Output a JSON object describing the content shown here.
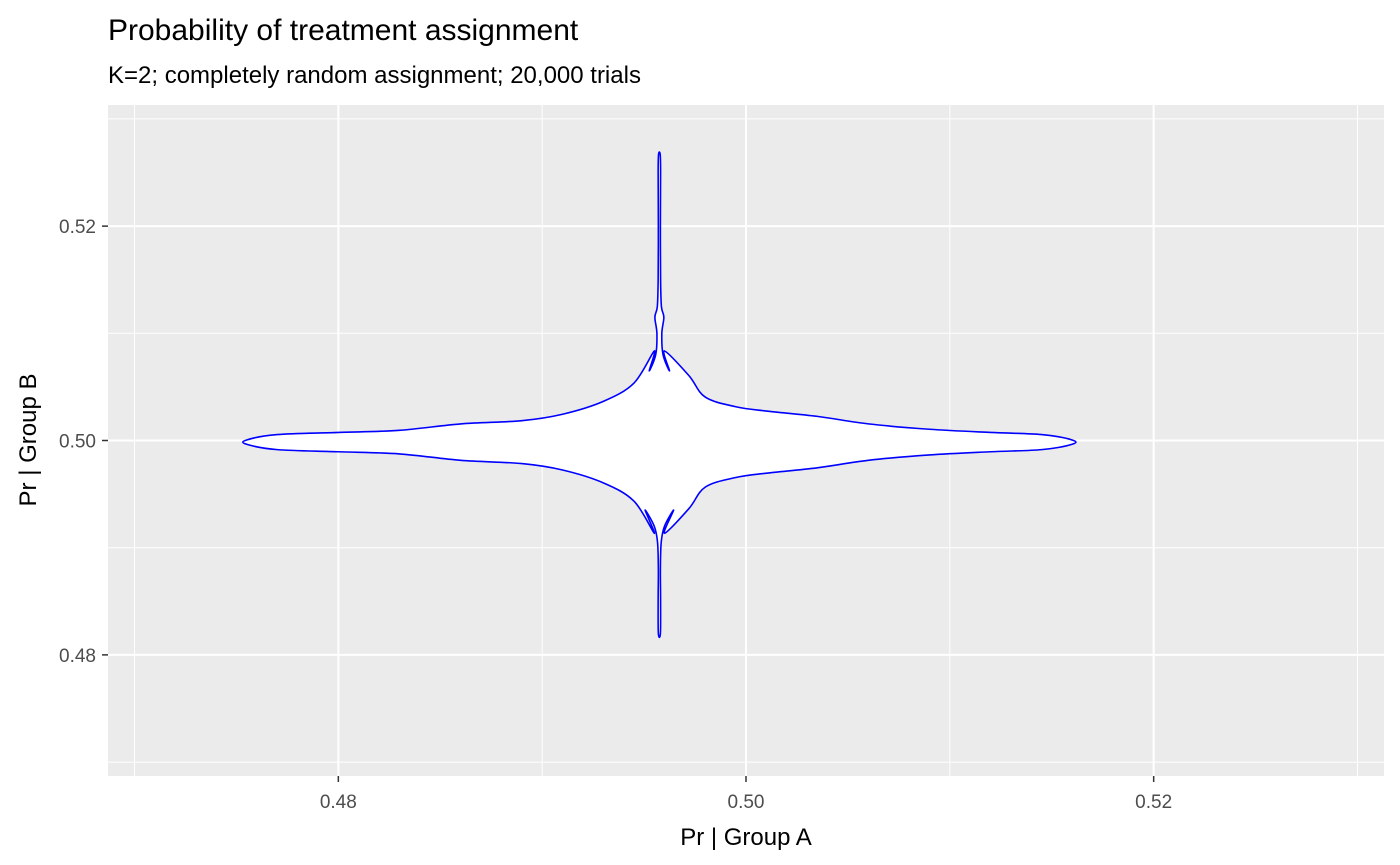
{
  "chart_data": {
    "type": "violin",
    "title": "Probability of treatment assignment",
    "subtitle": "K=2; completely random assignment; 20,000 trials",
    "xlabel": "Pr | Group A",
    "ylabel": "Pr | Group B",
    "xlim": [
      0.4687,
      0.5313
    ],
    "ylim": [
      0.4687,
      0.5313
    ],
    "x_ticks": [
      0.48,
      0.5,
      0.52
    ],
    "x_tick_labels": [
      "0.48",
      "0.50",
      "0.52"
    ],
    "y_ticks": [
      0.48,
      0.5,
      0.52
    ],
    "y_tick_labels": [
      "0.48",
      "0.50",
      "0.52"
    ],
    "x_minor_ticks": [
      0.47,
      0.49,
      0.51,
      0.53
    ],
    "y_minor_ticks": [
      0.47,
      0.49,
      0.51,
      0.53
    ],
    "grid": true,
    "colors": {
      "panel": "#ebebeb",
      "grid": "#ffffff",
      "outline": "#0000ff",
      "fill": "#ffffff"
    },
    "series": [
      {
        "orientation": "horizontal",
        "center": 0.49985,
        "outline": [
          [
            0.4755,
            0.0002
          ],
          [
            0.477,
            0.0007
          ],
          [
            0.48,
            0.0009
          ],
          [
            0.483,
            0.0011
          ],
          [
            0.486,
            0.0017
          ],
          [
            0.489,
            0.002
          ],
          [
            0.491,
            0.0026
          ],
          [
            0.493,
            0.0038
          ],
          [
            0.4945,
            0.0055
          ],
          [
            0.4955,
            0.0085
          ]
        ]
      },
      {
        "orientation": "horizontal",
        "center": 0.49985,
        "outline": [
          [
            0.496,
            0.0085
          ],
          [
            0.4972,
            0.0062
          ],
          [
            0.498,
            0.0042
          ],
          [
            0.4995,
            0.0033
          ],
          [
            0.501,
            0.0029
          ],
          [
            0.5035,
            0.0024
          ],
          [
            0.506,
            0.0017
          ],
          [
            0.509,
            0.0012
          ],
          [
            0.512,
            0.0009
          ],
          [
            0.5145,
            0.0007
          ],
          [
            0.516,
            0.0002
          ]
        ]
      },
      {
        "orientation": "vertical",
        "center": 0.49575,
        "outline": [
          [
            0.482,
            5e-05
          ],
          [
            0.485,
            6e-05
          ],
          [
            0.488,
            5e-05
          ],
          [
            0.4905,
            9e-05
          ],
          [
            0.492,
            0.00025
          ],
          [
            0.4935,
            0.0007
          ]
        ]
      },
      {
        "orientation": "vertical",
        "center": 0.49575,
        "outline": [
          [
            0.5065,
            0.0005
          ],
          [
            0.508,
            0.00018
          ],
          [
            0.51,
            0.00012
          ],
          [
            0.5115,
            0.00022
          ],
          [
            0.5125,
            0.0001
          ],
          [
            0.515,
            6e-05
          ],
          [
            0.52,
            5e-05
          ],
          [
            0.525,
            6e-05
          ],
          [
            0.5267,
            4e-05
          ]
        ]
      }
    ]
  }
}
